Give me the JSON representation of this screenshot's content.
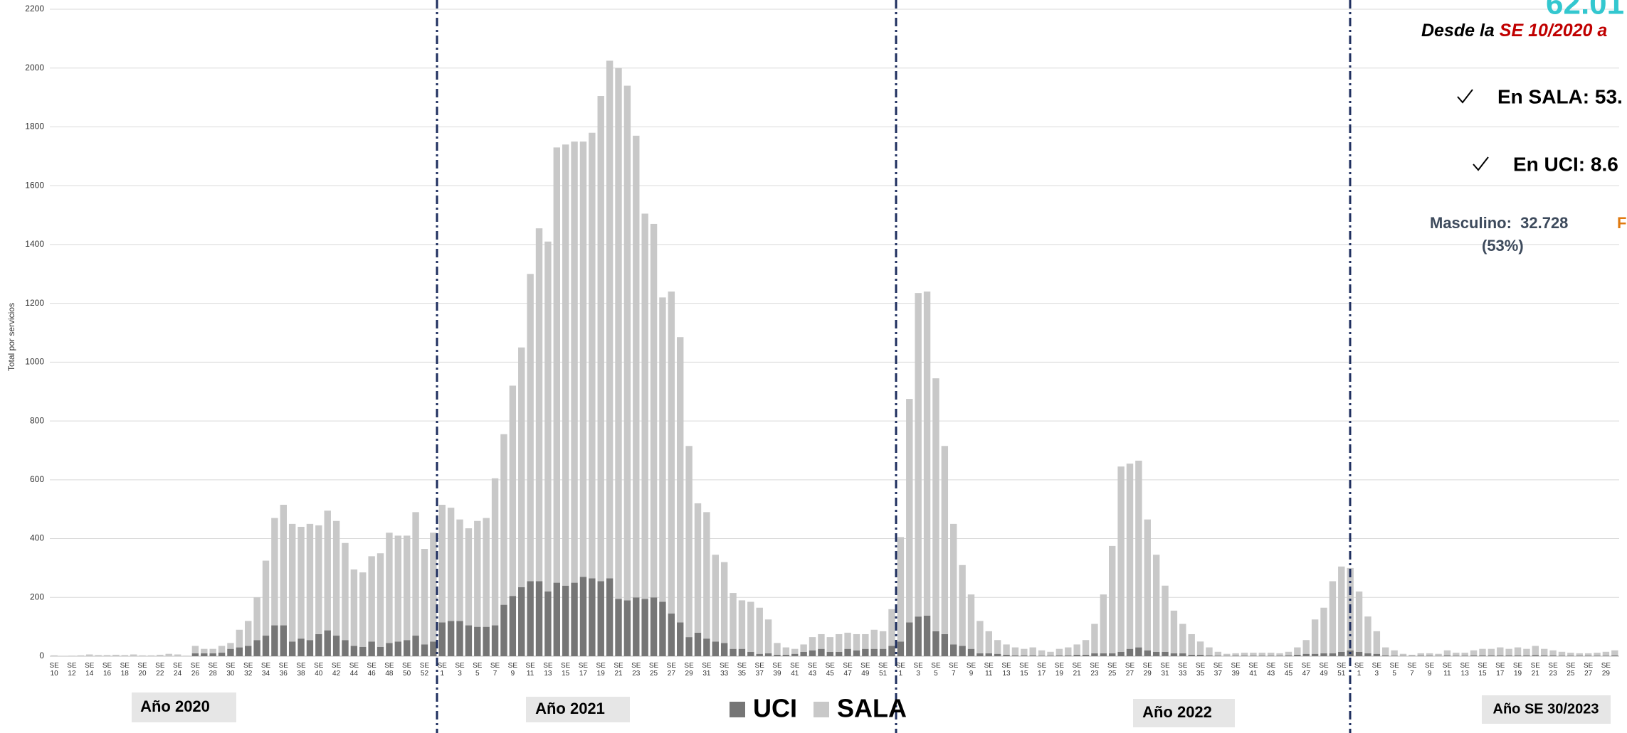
{
  "chart_data": {
    "type": "stacked_bar",
    "y_label": "Total por servicios",
    "ylim": [
      0,
      2200
    ],
    "yticks": [
      0,
      200,
      400,
      600,
      800,
      1000,
      1200,
      1400,
      1600,
      1800,
      2000,
      2200
    ],
    "grid": true,
    "categories": [
      "SE 10",
      null,
      "SE 12",
      null,
      "SE 14",
      null,
      "SE 16",
      null,
      "SE 18",
      null,
      "SE 20",
      null,
      "SE 22",
      null,
      "SE 24",
      null,
      "SE 26",
      null,
      "SE 28",
      null,
      "SE 30",
      null,
      "SE 32",
      null,
      "SE 34",
      null,
      "SE 36",
      null,
      "SE 38",
      null,
      "SE 40",
      null,
      "SE 42",
      null,
      "SE 44",
      null,
      "SE 46",
      null,
      "SE 48",
      null,
      "SE 50",
      null,
      "SE 52",
      null,
      "SE 1",
      null,
      "SE 3",
      null,
      "SE 5",
      null,
      "SE 7",
      null,
      "SE 9",
      null,
      "SE 11",
      null,
      "SE 13",
      null,
      "SE 15",
      null,
      "SE 17",
      null,
      "SE 19",
      null,
      "SE 21",
      null,
      "SE 23",
      null,
      "SE 25",
      null,
      "SE 27",
      null,
      "SE 29",
      null,
      "SE 31",
      null,
      "SE 33",
      null,
      "SE 35",
      null,
      "SE 37",
      null,
      "SE 39",
      null,
      "SE 41",
      null,
      "SE 43",
      null,
      "SE 45",
      null,
      "SE 47",
      null,
      "SE 49",
      null,
      "SE 51",
      null,
      "SE 1",
      null,
      "SE 3",
      null,
      "SE 5",
      null,
      "SE 7",
      null,
      "SE 9",
      null,
      "SE 11",
      null,
      "SE 13",
      null,
      "SE 15",
      null,
      "SE 17",
      null,
      "SE 19",
      null,
      "SE 21",
      null,
      "SE 23",
      null,
      "SE 25",
      null,
      "SE 27",
      null,
      "SE 29",
      null,
      "SE 31",
      null,
      "SE 33",
      null,
      "SE 35",
      null,
      "SE 37",
      null,
      "SE 39",
      null,
      "SE 41",
      null,
      "SE 43",
      null,
      "SE 45",
      null,
      "SE 47",
      null,
      "SE 49",
      null,
      "SE 51",
      null,
      "SE 1",
      null,
      "SE 3",
      null,
      "SE 5",
      null,
      "SE 7",
      null,
      "SE 9",
      null,
      "SE 11",
      null,
      "SE 13",
      null,
      "SE 15",
      null,
      "SE 17",
      null,
      "SE 19",
      null,
      "SE 21",
      null,
      "SE 23",
      null,
      "SE 25",
      null,
      "SE 27",
      null,
      "SE 29",
      null
    ],
    "series": [
      {
        "name": "UCI",
        "color": "#767676",
        "values": [
          0,
          0,
          0,
          0,
          0,
          0,
          0,
          0,
          0,
          0,
          0,
          0,
          0,
          0,
          0,
          0,
          10,
          10,
          10,
          12,
          25,
          30,
          35,
          55,
          70,
          105,
          105,
          50,
          60,
          55,
          75,
          88,
          70,
          55,
          35,
          32,
          50,
          32,
          45,
          50,
          55,
          70,
          40,
          50,
          115,
          120,
          120,
          105,
          100,
          100,
          105,
          175,
          205,
          235,
          255,
          255,
          220,
          250,
          240,
          250,
          270,
          265,
          255,
          265,
          195,
          190,
          200,
          195,
          200,
          185,
          145,
          115,
          65,
          80,
          60,
          50,
          45,
          25,
          25,
          15,
          8,
          10,
          5,
          5,
          8,
          15,
          20,
          25,
          15,
          15,
          25,
          20,
          25,
          25,
          25,
          35,
          50,
          115,
          135,
          138,
          85,
          75,
          40,
          35,
          25,
          10,
          10,
          8,
          5,
          3,
          3,
          3,
          2,
          2,
          3,
          3,
          5,
          5,
          10,
          10,
          10,
          15,
          25,
          30,
          20,
          15,
          15,
          10,
          10,
          5,
          5,
          3,
          2,
          1,
          2,
          2,
          2,
          2,
          2,
          2,
          3,
          5,
          8,
          8,
          10,
          10,
          15,
          20,
          15,
          10,
          8,
          3,
          2,
          1,
          1,
          2,
          2,
          1,
          3,
          2,
          2,
          3,
          3,
          3,
          3,
          3,
          3,
          3,
          4,
          3,
          3,
          2,
          2,
          2,
          2,
          2,
          2,
          3
        ]
      },
      {
        "name": "SALA",
        "color": "#c8c8c8",
        "values": [
          3,
          0,
          2,
          3,
          6,
          4,
          4,
          5,
          4,
          6,
          3,
          3,
          5,
          8,
          6,
          2,
          25,
          15,
          15,
          23,
          20,
          60,
          85,
          145,
          255,
          365,
          410,
          400,
          380,
          395,
          370,
          407,
          390,
          330,
          260,
          253,
          290,
          318,
          375,
          360,
          355,
          420,
          325,
          370,
          400,
          385,
          345,
          330,
          360,
          370,
          500,
          580,
          715,
          815,
          1045,
          1200,
          1190,
          1480,
          1500,
          1500,
          1480,
          1515,
          1650,
          1760,
          1805,
          1750,
          1570,
          1310,
          1270,
          1035,
          1095,
          970,
          650,
          440,
          430,
          295,
          275,
          190,
          165,
          170,
          157,
          115,
          40,
          25,
          17,
          25,
          45,
          50,
          50,
          60,
          55,
          55,
          50,
          65,
          60,
          125,
          355,
          760,
          1100,
          1102,
          860,
          640,
          410,
          275,
          185,
          110,
          75,
          47,
          35,
          27,
          22,
          27,
          18,
          13,
          22,
          27,
          35,
          50,
          100,
          200,
          365,
          630,
          630,
          635,
          445,
          330,
          225,
          145,
          100,
          70,
          45,
          27,
          13,
          7,
          8,
          10,
          10,
          10,
          10,
          8,
          12,
          25,
          47,
          117,
          155,
          245,
          290,
          280,
          205,
          125,
          77,
          27,
          18,
          7,
          4,
          8,
          8,
          7,
          17,
          10,
          10,
          17,
          22,
          22,
          27,
          22,
          27,
          22,
          31,
          22,
          17,
          13,
          10,
          8,
          8,
          10,
          13,
          17
        ]
      }
    ],
    "year_labels": [
      "Año 2020",
      "Año 2021",
      "Año 2022",
      "Año SE 30/2023"
    ],
    "annotations": {
      "total": "62.01",
      "desde_prefix": "Desde la ",
      "desde_highlight": "SE 10/2020 a",
      "sala": "En SALA: 53.",
      "uci": "En UCI: 8.6",
      "masculino": "Masculino:  32.728",
      "masculino_pct": "(53%)",
      "femenino": "F"
    }
  }
}
